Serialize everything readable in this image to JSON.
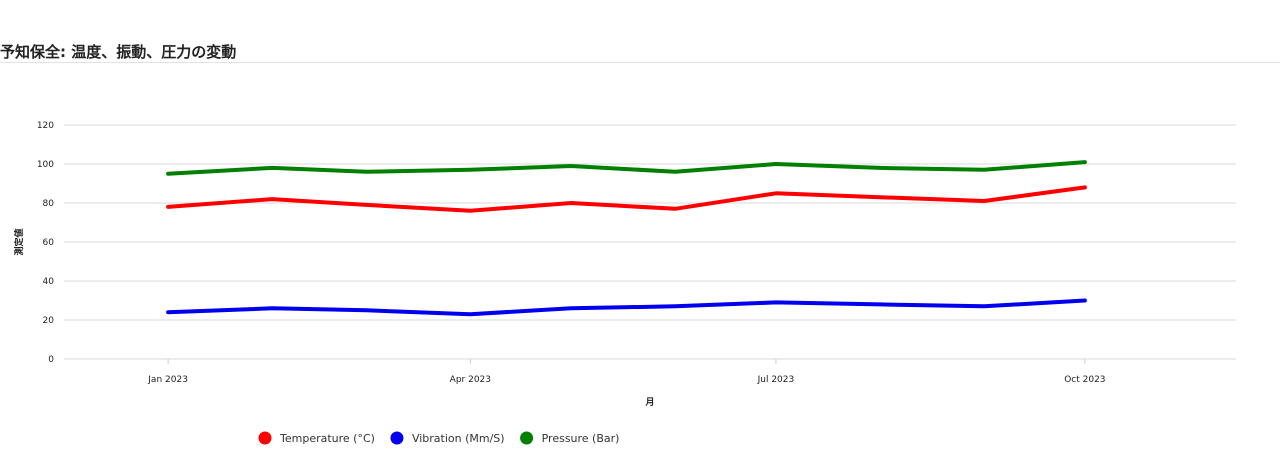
{
  "page": {
    "title": "予知保全: 温度、振動、圧力の変動"
  },
  "chart_data": {
    "type": "line",
    "xlabel": "月",
    "ylabel": "測定値",
    "ylim": [
      0,
      120
    ],
    "yticks": [
      0,
      20,
      40,
      60,
      80,
      100,
      120
    ],
    "xlim": [
      "2022-12-01",
      "2023-11-15"
    ],
    "xticks": [
      {
        "date": "2023-01-01",
        "label": "Jan 2023"
      },
      {
        "date": "2023-04-01",
        "label": "Apr 2023"
      },
      {
        "date": "2023-07-01",
        "label": "Jul 2023"
      },
      {
        "date": "2023-10-01",
        "label": "Oct 2023"
      }
    ],
    "x": [
      "2023-01-01",
      "2023-02-01",
      "2023-03-01",
      "2023-04-01",
      "2023-05-01",
      "2023-06-01",
      "2023-07-01",
      "2023-08-01",
      "2023-09-01",
      "2023-10-01"
    ],
    "grid": true,
    "legend_position": "bottom",
    "series": [
      {
        "name": "Temperature (°C)",
        "color": "#ff0000",
        "values": [
          78,
          82,
          79,
          76,
          80,
          77,
          85,
          83,
          81,
          88
        ]
      },
      {
        "name": "Vibration (Mm/S)",
        "color": "#0000ee",
        "values": [
          24,
          26,
          25,
          23,
          26,
          27,
          29,
          28,
          27,
          30
        ]
      },
      {
        "name": "Pressure (Bar)",
        "color": "#008000",
        "values": [
          95,
          98,
          96,
          97,
          99,
          96,
          100,
          98,
          97,
          101
        ]
      }
    ]
  }
}
